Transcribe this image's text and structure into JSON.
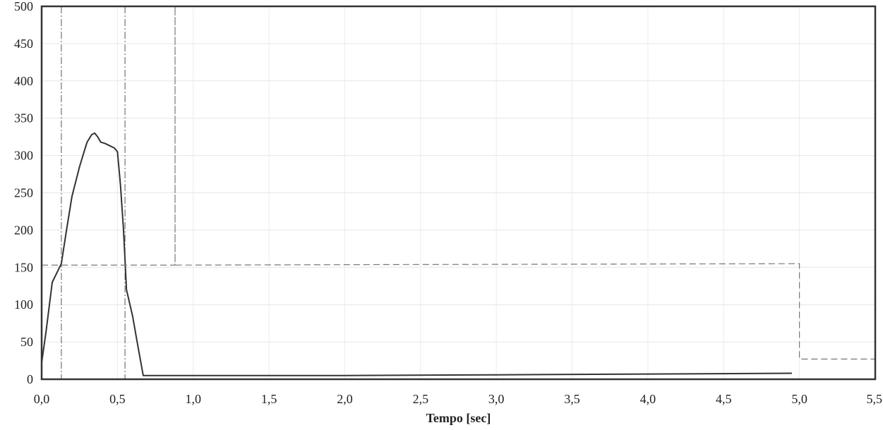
{
  "chart_data": {
    "type": "line",
    "xlabel": "Tempo [sec]",
    "ylabel": "",
    "title": "",
    "xlim": [
      0,
      5.5
    ],
    "ylim": [
      0,
      500
    ],
    "x_ticks": [
      "0,0",
      "0,5",
      "1,0",
      "1,5",
      "2,0",
      "2,5",
      "3,0",
      "3,5",
      "4,0",
      "4,5",
      "5,0",
      "5,5"
    ],
    "y_ticks": [
      "0",
      "50",
      "100",
      "150",
      "200",
      "250",
      "300",
      "350",
      "400",
      "450",
      "500"
    ],
    "grid": true,
    "series": [
      {
        "style": "solid",
        "color": "#333333",
        "points": [
          [
            0.0,
            22
          ],
          [
            0.03,
            65
          ],
          [
            0.07,
            130
          ],
          [
            0.13,
            155
          ],
          [
            0.16,
            195
          ],
          [
            0.2,
            245
          ],
          [
            0.25,
            285
          ],
          [
            0.28,
            305
          ],
          [
            0.3,
            318
          ],
          [
            0.33,
            328
          ],
          [
            0.35,
            330
          ],
          [
            0.37,
            325
          ],
          [
            0.39,
            318
          ],
          [
            0.42,
            316
          ],
          [
            0.45,
            313
          ],
          [
            0.48,
            310
          ],
          [
            0.5,
            305
          ],
          [
            0.52,
            260
          ],
          [
            0.54,
            200
          ],
          [
            0.56,
            120
          ],
          [
            0.6,
            85
          ],
          [
            0.63,
            50
          ],
          [
            0.67,
            5
          ],
          [
            1.0,
            5
          ],
          [
            2.0,
            5
          ],
          [
            3.0,
            6
          ],
          [
            4.0,
            7
          ],
          [
            4.95,
            8
          ]
        ]
      },
      {
        "style": "dashed",
        "color": "#777777",
        "points": [
          [
            0.0,
            153
          ],
          [
            0.88,
            153
          ],
          [
            0.88,
            500
          ],
          [
            0.88,
            153
          ],
          [
            5.0,
            155
          ],
          [
            5.0,
            27
          ],
          [
            5.5,
            27
          ]
        ]
      }
    ],
    "markers": [
      {
        "x": 0.13,
        "style": "dash-dot"
      },
      {
        "x": 0.55,
        "style": "dash-dot"
      }
    ]
  }
}
